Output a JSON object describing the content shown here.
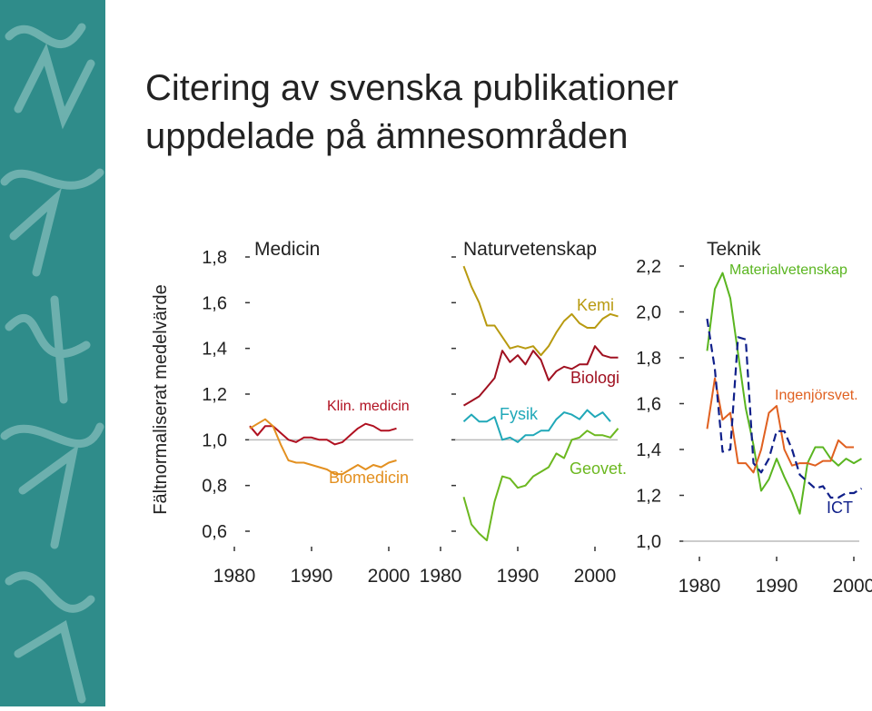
{
  "title": [
    "Citering av svenska publikationer",
    "uppdelade på ämnesområden"
  ],
  "y_label": "Fältnormaliserat medelvärde",
  "chart_data": [
    {
      "type": "line",
      "title": "Medicin",
      "x": [
        1982,
        1983,
        1984,
        1985,
        1986,
        1987,
        1988,
        1989,
        1990,
        1991,
        1992,
        1993,
        1994,
        1995,
        1996,
        1997,
        1998,
        1999,
        2000,
        2001
      ],
      "series": [
        {
          "name": "Klin. medicin",
          "color": "#b01020",
          "values": [
            1.06,
            1.02,
            1.06,
            1.06,
            1.03,
            1.0,
            0.99,
            1.01,
            1.01,
            1.0,
            1.0,
            0.98,
            0.99,
            1.02,
            1.05,
            1.07,
            1.06,
            1.04,
            1.04,
            1.05
          ]
        },
        {
          "name": "Biomedicin",
          "color": "#e39020",
          "values": [
            1.05,
            1.07,
            1.09,
            1.06,
            0.98,
            0.91,
            0.9,
            0.9,
            0.89,
            0.88,
            0.87,
            0.85,
            0.85,
            0.87,
            0.89,
            0.87,
            0.89,
            0.88,
            0.9,
            0.91
          ]
        }
      ],
      "xlim": [
        1980,
        2002
      ],
      "xticks": [
        1980,
        1990,
        2000
      ],
      "ylim": [
        0.6,
        1.8
      ],
      "yticks": [
        {
          "value": 0.6,
          "label": "0,6"
        },
        {
          "value": 0.8,
          "label": "0,8"
        },
        {
          "value": 1.0,
          "label": "1,0"
        },
        {
          "value": 1.2,
          "label": "1,2"
        },
        {
          "value": 1.4,
          "label": "1,4"
        },
        {
          "value": 1.6,
          "label": "1,6"
        },
        {
          "value": 1.8,
          "label": "1,8"
        }
      ],
      "reference_line": 1.0
    },
    {
      "type": "line",
      "title": "Naturvetenskap",
      "x": [
        1983,
        1984,
        1985,
        1986,
        1987,
        1988,
        1989,
        1990,
        1991,
        1992,
        1993,
        1994,
        1995,
        1996,
        1997,
        1998,
        1999,
        2000,
        2001,
        2002,
        2003
      ],
      "series": [
        {
          "name": "Kemi",
          "color": "#b89a10",
          "values": [
            1.76,
            1.67,
            1.6,
            1.5,
            1.5,
            1.45,
            1.4,
            1.41,
            1.4,
            1.41,
            1.37,
            1.41,
            1.47,
            1.52,
            1.55,
            1.51,
            1.49,
            1.49,
            1.53,
            1.55,
            1.54
          ]
        },
        {
          "name": "Biologi",
          "color": "#a01020",
          "values": [
            1.15,
            1.17,
            1.19,
            1.23,
            1.27,
            1.39,
            1.34,
            1.37,
            1.33,
            1.39,
            1.35,
            1.26,
            1.3,
            1.32,
            1.31,
            1.33,
            1.33,
            1.41,
            1.37,
            1.36,
            1.36
          ]
        },
        {
          "name": "Fysik",
          "color": "#20a8b8",
          "values": [
            1.08,
            1.11,
            1.08,
            1.08,
            1.1,
            1.0,
            1.01,
            0.99,
            1.02,
            1.02,
            1.04,
            1.04,
            1.09,
            1.12,
            1.11,
            1.09,
            1.13,
            1.1,
            1.12,
            1.08,
            null
          ]
        },
        {
          "name": "Geovet.",
          "color": "#6cb820",
          "values": [
            0.75,
            0.63,
            0.59,
            0.56,
            0.73,
            0.84,
            0.83,
            0.79,
            0.8,
            0.84,
            0.86,
            0.88,
            0.94,
            0.92,
            1.0,
            1.01,
            1.04,
            1.02,
            1.02,
            1.01,
            1.05
          ]
        }
      ],
      "xlim": [
        1980,
        2003
      ],
      "xticks": [
        1980,
        1990,
        2000
      ],
      "ylim": [
        0.6,
        1.8
      ],
      "yticks": [
        0.6,
        0.8,
        1.0,
        1.2,
        1.4,
        1.6,
        1.8
      ],
      "reference_line": 1.0
    },
    {
      "type": "line",
      "title": "Teknik",
      "x": [
        1981,
        1982,
        1983,
        1984,
        1985,
        1986,
        1987,
        1988,
        1989,
        1990,
        1991,
        1992,
        1993,
        1994,
        1995,
        1996,
        1997,
        1998,
        1999,
        2000,
        2001
      ],
      "series": [
        {
          "name": "Materialvetenskap",
          "color": "#5ab520",
          "values": [
            1.83,
            2.1,
            2.17,
            2.06,
            1.82,
            1.58,
            1.42,
            1.22,
            1.27,
            1.36,
            1.28,
            1.21,
            1.12,
            1.34,
            1.41,
            1.41,
            1.36,
            1.33,
            1.36,
            1.34,
            1.36
          ]
        },
        {
          "name": "Ingenjörsvet.",
          "color": "#e06020",
          "values": [
            1.49,
            1.71,
            1.53,
            1.56,
            1.34,
            1.34,
            1.3,
            1.4,
            1.56,
            1.59,
            1.4,
            1.33,
            1.34,
            1.34,
            1.33,
            1.35,
            1.35,
            1.44,
            1.41,
            1.41,
            null
          ]
        },
        {
          "name": "ICT",
          "color": "#10208a",
          "style": "dashed",
          "values": [
            1.97,
            1.75,
            1.39,
            1.4,
            1.89,
            1.88,
            1.34,
            1.3,
            1.36,
            1.48,
            1.48,
            1.4,
            1.29,
            1.26,
            1.23,
            1.24,
            1.19,
            1.19,
            1.21,
            1.21,
            1.23
          ]
        }
      ],
      "xlim": [
        1980,
        2001
      ],
      "xticks": [
        1980,
        1990,
        2000
      ],
      "ylim": [
        1.0,
        2.2
      ],
      "yticks": [
        {
          "value": 1.0,
          "label": "1,0"
        },
        {
          "value": 1.2,
          "label": "1,2"
        },
        {
          "value": 1.4,
          "label": "1,4"
        },
        {
          "value": 1.6,
          "label": "1,6"
        },
        {
          "value": 1.8,
          "label": "1,8"
        },
        {
          "value": 2.0,
          "label": "2,0"
        },
        {
          "value": 2.2,
          "label": "2,2"
        }
      ],
      "reference_line": 1.0
    }
  ]
}
